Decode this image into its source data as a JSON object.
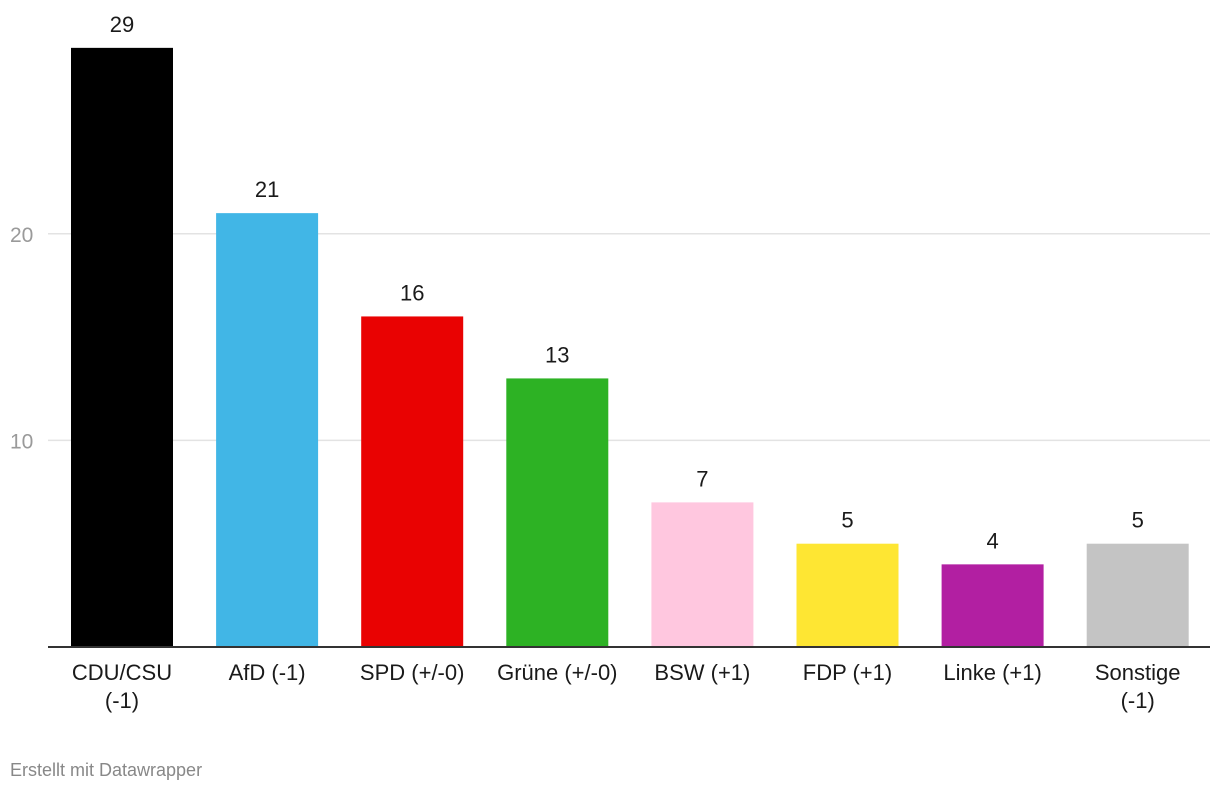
{
  "chart_data": {
    "type": "bar",
    "categories": [
      "CDU/CSU (-1)",
      "AfD (-1)",
      "SPD (+/-0)",
      "Grüne (+/-0)",
      "BSW (+1)",
      "FDP (+1)",
      "Linke (+1)",
      "Sonstige (-1)"
    ],
    "category_lines": [
      [
        "CDU/CSU",
        "(-1)"
      ],
      [
        "AfD (-1)"
      ],
      [
        "SPD (+/-0)"
      ],
      [
        "Grüne (+/-0)"
      ],
      [
        "BSW (+1)"
      ],
      [
        "FDP (+1)"
      ],
      [
        "Linke (+1)"
      ],
      [
        "Sonstige",
        "(-1)"
      ]
    ],
    "values": [
      29,
      21,
      16,
      13,
      7,
      5,
      4,
      5
    ],
    "colors": [
      "#000000",
      "#41b6e6",
      "#e90202",
      "#2db224",
      "#ffc7df",
      "#fee633",
      "#b21fa2",
      "#c4c4c4"
    ],
    "ylim": [
      0,
      29
    ],
    "yticks": [
      10,
      20
    ],
    "grid": true,
    "title": "",
    "xlabel": "",
    "ylabel": ""
  },
  "footer": {
    "credit": "Erstellt mit Datawrapper"
  }
}
